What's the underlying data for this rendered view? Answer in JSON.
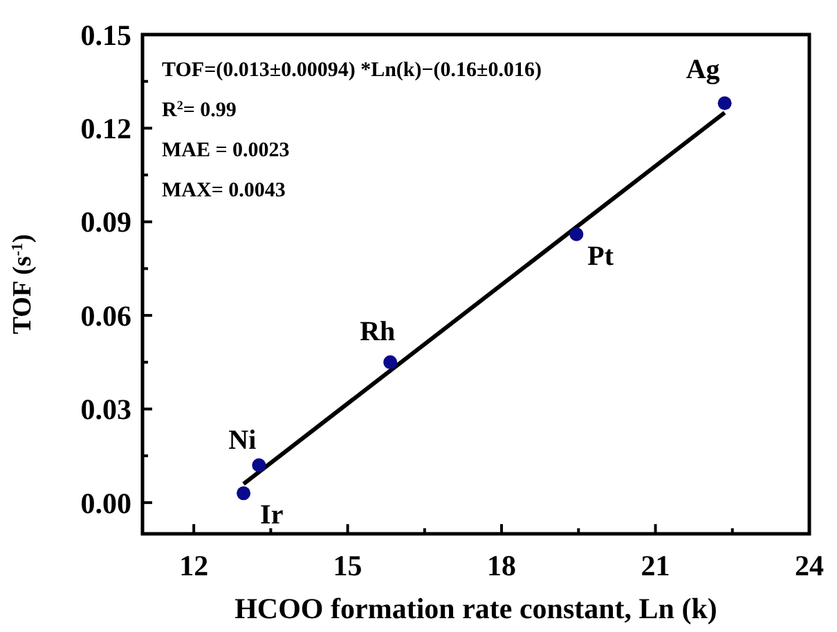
{
  "chart_data": {
    "type": "scatter",
    "xlabel": "HCOO formation rate constant, Ln (k)",
    "ylabel": "TOF (s$^{-1}$)",
    "xlim": [
      11,
      24
    ],
    "xticks": [
      {
        "value": 12,
        "label": "12"
      },
      {
        "value": 13.5,
        "label": null
      },
      {
        "value": 15,
        "label": "15"
      },
      {
        "value": 16.5,
        "label": null
      },
      {
        "value": 18,
        "label": "18"
      },
      {
        "value": 19.5,
        "label": null
      },
      {
        "value": 21,
        "label": "21"
      },
      {
        "value": 22.5,
        "label": null
      },
      {
        "value": 24,
        "label": "24"
      }
    ],
    "ylim": [
      -0.01,
      0.15
    ],
    "yticks": [
      {
        "value": 0,
        "label": "0.00"
      },
      {
        "value": 0.015,
        "label": null
      },
      {
        "value": 0.03,
        "label": "0.03"
      },
      {
        "value": 0.045,
        "label": null
      },
      {
        "value": 0.06,
        "label": "0.06"
      },
      {
        "value": 0.075,
        "label": null
      },
      {
        "value": 0.09,
        "label": "0.09"
      },
      {
        "value": 0.105,
        "label": null
      },
      {
        "value": 0.12,
        "label": "0.12"
      },
      {
        "value": 0.135,
        "label": null
      },
      {
        "value": 0.15,
        "label": "0.15"
      }
    ],
    "grid": false,
    "series": [
      {
        "marker": "circle",
        "color": "#0a0a8c",
        "x": [
          12.97,
          13.27,
          15.83,
          19.46,
          22.35
        ],
        "values": [
          0.003,
          0.012,
          0.045,
          0.086,
          0.128
        ]
      },
      {
        "type": "line",
        "color": "#000000",
        "x": [
          12.97,
          22.35
        ],
        "values": [
          0.006,
          0.125
        ]
      }
    ],
    "annotations": [
      "TOF=(0.013±0.00094) *Ln(k)−(0.16±0.016)",
      "R$^{2}$= 0.99",
      "MAE = 0.0023",
      "MAX= 0.0043",
      {
        "text": "Ir",
        "x": 12.97,
        "y": 0.003
      },
      {
        "text": "Ni",
        "x": 13.27,
        "y": 0.012
      },
      {
        "text": "Rh",
        "x": 15.83,
        "y": 0.045
      },
      {
        "text": "Pt",
        "x": 19.46,
        "y": 0.086
      },
      {
        "text": "Ag",
        "x": 22.35,
        "y": 0.128
      }
    ]
  }
}
